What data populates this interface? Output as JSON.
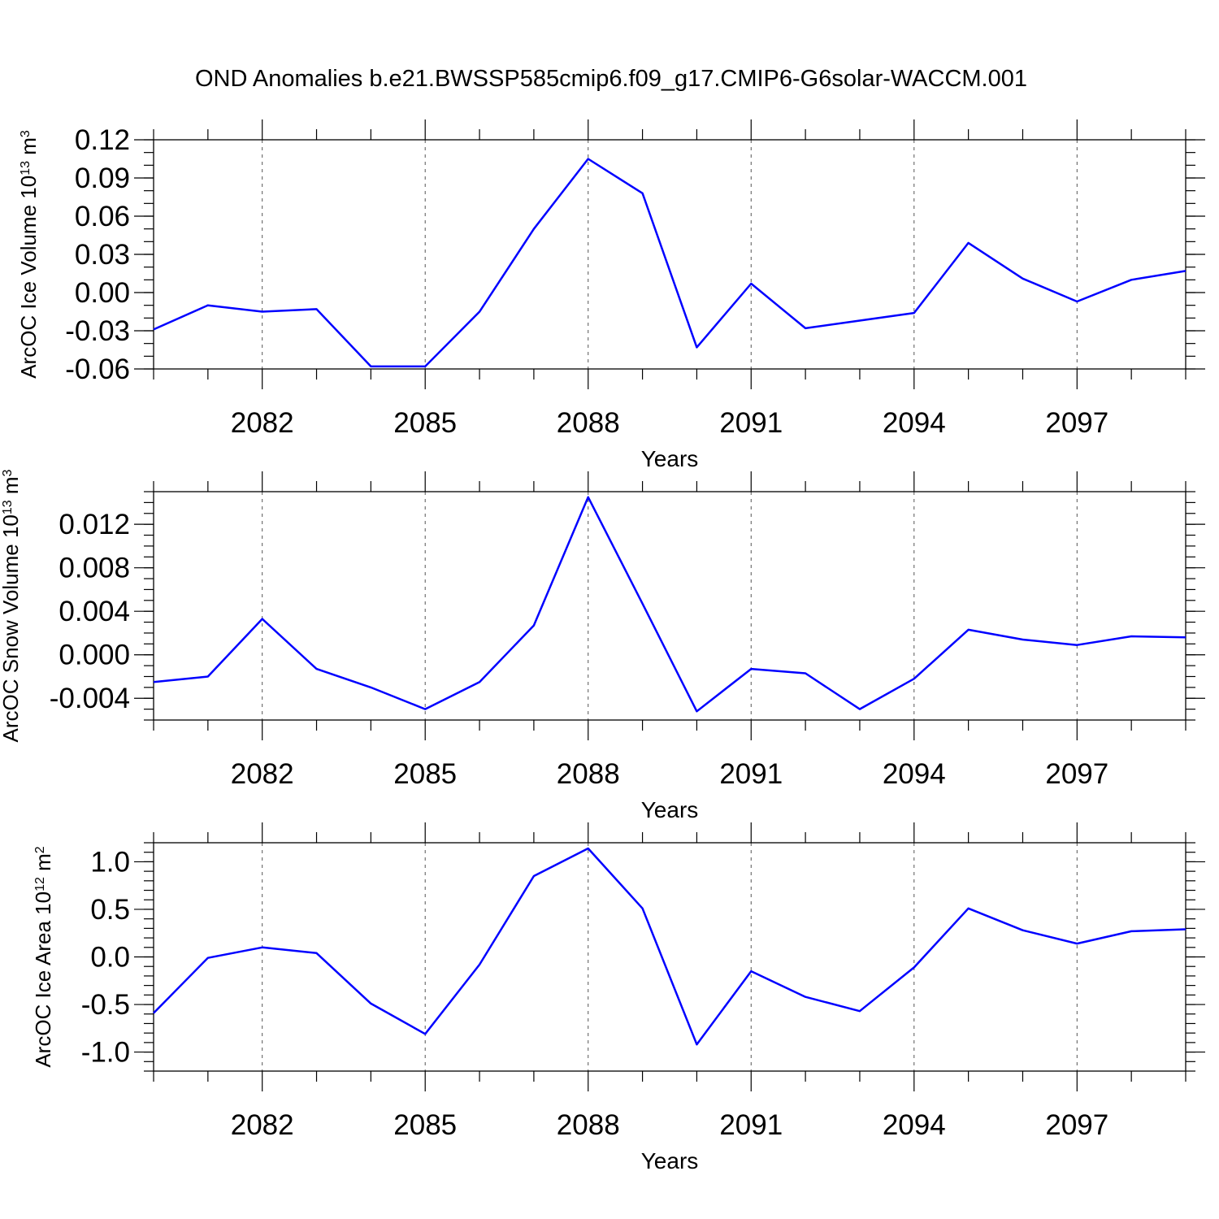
{
  "figure_title": "OND Anomalies b.e21.BWSSP585cmip6.f09_g17.CMIP6-G6solar-WACCM.001",
  "colors": {
    "series": "#0000ff",
    "axes": "#000000",
    "grid": "#555555"
  },
  "chart_data": [
    {
      "type": "line",
      "title": "OND Anomalies b.e21.BWSSP585cmip6.f09_g17.CMIP6-G6solar-WACCM.001",
      "xlabel": "Years",
      "ylabel": {
        "main": "ArcOC Ice Volume 10",
        "exp": "13",
        "unit": " m",
        "unit_exp": "3"
      },
      "xlim": [
        2080,
        2099
      ],
      "ylim": [
        -0.06,
        0.12
      ],
      "x_ticks": [
        2082,
        2085,
        2088,
        2091,
        2094,
        2097
      ],
      "x_tick_labels": [
        "2082",
        "2085",
        "2088",
        "2091",
        "2094",
        "2097"
      ],
      "y_ticks": [
        -0.06,
        -0.03,
        0.0,
        0.03,
        0.06,
        0.09,
        0.12
      ],
      "y_tick_labels": [
        "-0.06",
        "-0.03",
        "0.00",
        "0.03",
        "0.06",
        "0.09",
        "0.12"
      ],
      "grid": "vertical dashed at major x ticks",
      "x": [
        2080,
        2081,
        2082,
        2083,
        2084,
        2085,
        2086,
        2087,
        2088,
        2089,
        2090,
        2091,
        2092,
        2093,
        2094,
        2095,
        2096,
        2097,
        2098,
        2099
      ],
      "values": [
        -0.029,
        -0.01,
        -0.015,
        -0.013,
        -0.058,
        -0.058,
        -0.015,
        0.05,
        0.105,
        0.078,
        -0.043,
        0.007,
        -0.028,
        -0.022,
        -0.016,
        0.039,
        0.011,
        -0.007,
        0.01,
        0.017
      ]
    },
    {
      "type": "line",
      "xlabel": "Years",
      "ylabel": {
        "main": "ArcOC Snow Volume 10",
        "exp": "13",
        "unit": " m",
        "unit_exp": "3"
      },
      "xlim": [
        2080,
        2099
      ],
      "ylim": [
        -0.006,
        0.015
      ],
      "x_ticks": [
        2082,
        2085,
        2088,
        2091,
        2094,
        2097
      ],
      "x_tick_labels": [
        "2082",
        "2085",
        "2088",
        "2091",
        "2094",
        "2097"
      ],
      "y_ticks": [
        -0.004,
        0.0,
        0.004,
        0.008,
        0.012
      ],
      "y_tick_labels": [
        "-0.004",
        "0.000",
        "0.004",
        "0.008",
        "0.012"
      ],
      "grid": "vertical dashed at major x ticks",
      "x": [
        2080,
        2081,
        2082,
        2083,
        2084,
        2085,
        2086,
        2087,
        2088,
        2089,
        2090,
        2091,
        2092,
        2093,
        2094,
        2095,
        2096,
        2097,
        2098,
        2099
      ],
      "values": [
        -0.0025,
        -0.002,
        0.0033,
        -0.0013,
        -0.003,
        -0.005,
        -0.0025,
        0.0027,
        0.0145,
        0.0047,
        -0.0052,
        -0.0013,
        -0.0017,
        -0.005,
        -0.0022,
        0.0023,
        0.0014,
        0.0009,
        0.0017,
        0.0016
      ]
    },
    {
      "type": "line",
      "xlabel": "Years",
      "ylabel": {
        "main": "ArcOC Ice Area 10",
        "exp": "12",
        "unit": " m",
        "unit_exp": "2"
      },
      "xlim": [
        2080,
        2099
      ],
      "ylim": [
        -1.2,
        1.2
      ],
      "x_ticks": [
        2082,
        2085,
        2088,
        2091,
        2094,
        2097
      ],
      "x_tick_labels": [
        "2082",
        "2085",
        "2088",
        "2091",
        "2094",
        "2097"
      ],
      "y_ticks": [
        -1.0,
        -0.5,
        0.0,
        0.5,
        1.0
      ],
      "y_tick_labels": [
        "-1.0",
        "-0.5",
        "0.0",
        "0.5",
        "1.0"
      ],
      "grid": "vertical dashed at major x ticks",
      "x": [
        2080,
        2081,
        2082,
        2083,
        2084,
        2085,
        2086,
        2087,
        2088,
        2089,
        2090,
        2091,
        2092,
        2093,
        2094,
        2095,
        2096,
        2097,
        2098,
        2099
      ],
      "values": [
        -0.59,
        -0.01,
        0.1,
        0.04,
        -0.49,
        -0.81,
        -0.08,
        0.85,
        1.14,
        0.51,
        -0.92,
        -0.15,
        -0.42,
        -0.57,
        -0.11,
        0.51,
        0.28,
        0.14,
        0.27,
        0.29
      ]
    }
  ]
}
